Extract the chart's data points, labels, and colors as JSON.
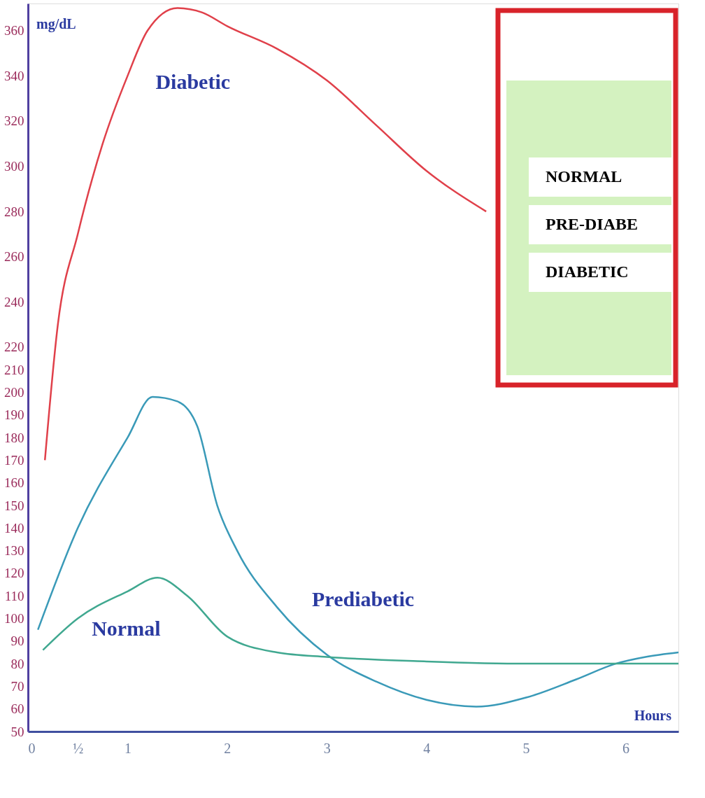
{
  "chart_data": {
    "type": "line",
    "xlabel": "Hours",
    "ylabel": "mg/dL",
    "xlim": [
      0,
      6.53
    ],
    "xticks": [
      0,
      {
        "value": 0.5,
        "label": "½"
      },
      1,
      2,
      3,
      4,
      5,
      6
    ],
    "ylim": [
      50,
      372
    ],
    "yticks": [
      50,
      60,
      70,
      80,
      90,
      100,
      110,
      120,
      130,
      140,
      150,
      160,
      170,
      180,
      190,
      200,
      210,
      220,
      240,
      260,
      280,
      300,
      320,
      340,
      360
    ],
    "grid": false,
    "marker": "none",
    "line_style": "solid",
    "annotations": [
      "NORMAL",
      "PRE-DIABE",
      "DIABETIC"
    ],
    "series": [
      {
        "name": "Diabetic",
        "color": "#e0404a",
        "x": [
          0.17,
          0.3,
          0.5,
          0.75,
          1,
          1.2,
          1.5,
          1.75,
          2,
          2.5,
          3,
          3.5,
          4,
          4.6
        ],
        "values": [
          170,
          230,
          270,
          310,
          340,
          360,
          370,
          368,
          362,
          352,
          338,
          318,
          298,
          280
        ]
      },
      {
        "name": "Prediabetic",
        "color": "#3a9ab8",
        "x": [
          0.1,
          0.5,
          1,
          1.25,
          1.5,
          1.7,
          1.9,
          2.1,
          2.5,
          3,
          3.5,
          4,
          4.5,
          5,
          5.5,
          5.9,
          6.2,
          6.53
        ],
        "values": [
          95,
          140,
          180,
          198,
          196,
          185,
          150,
          130,
          105,
          84,
          72,
          64,
          61,
          65,
          73,
          80,
          83,
          85
        ]
      },
      {
        "name": "Normal",
        "color": "#40a890",
        "x": [
          0.15,
          0.5,
          1,
          1.3,
          1.6,
          2,
          2.5,
          3,
          4,
          5,
          6,
          6.53
        ],
        "values": [
          86,
          100,
          112,
          118,
          110,
          92,
          85,
          83,
          81,
          80,
          80,
          80
        ]
      }
    ]
  }
}
